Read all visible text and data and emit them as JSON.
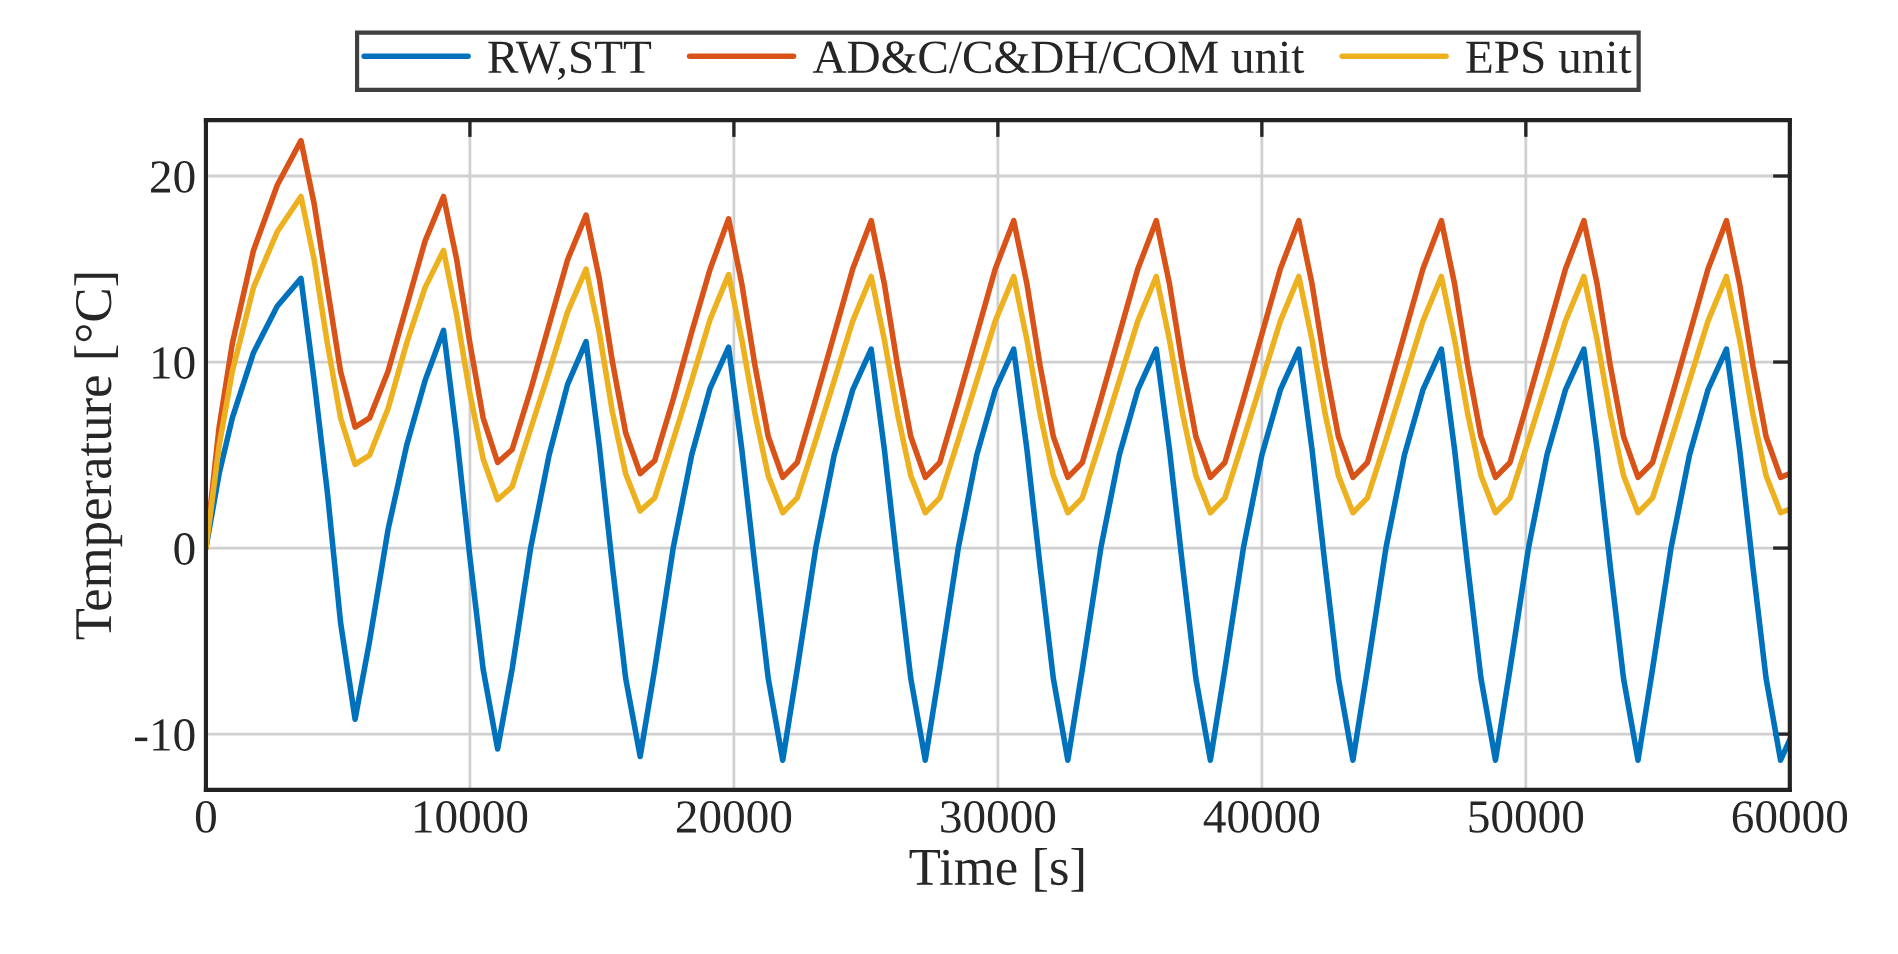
{
  "chart_data": {
    "type": "line",
    "xlabel": "Time [s]",
    "ylabel": "Temperature [°C]",
    "x": [
      0,
      500,
      1000,
      1800,
      2700,
      3600,
      4100,
      4600,
      5100,
      5650,
      6200,
      6900,
      7600,
      8300,
      9000,
      9500,
      10000,
      10500,
      11050,
      11600,
      12300,
      13000,
      13700,
      14400,
      14900,
      15400,
      15900,
      16450,
      17000,
      17700,
      18400,
      19100,
      19800,
      20300,
      20800,
      21300,
      21850,
      22400,
      23100,
      23800,
      24500,
      25200,
      25700,
      26200,
      26700,
      27250,
      27800,
      28500,
      29200,
      29900,
      30600,
      31100,
      31600,
      32100,
      32650,
      33200,
      33900,
      34600,
      35300,
      36000,
      36500,
      37000,
      37500,
      38050,
      38600,
      39300,
      40000,
      40700,
      41400,
      41900,
      42400,
      42900,
      43450,
      44000,
      44700,
      45400,
      46100,
      46800,
      47300,
      47800,
      48300,
      48850,
      49400,
      50100,
      50800,
      51500,
      52200,
      52700,
      53200,
      53700,
      54250,
      54800,
      55500,
      56200,
      56900,
      57600,
      58100,
      58600,
      59100,
      59650,
      60000
    ],
    "series": [
      {
        "name": "RW,STT",
        "color": "#0072bd",
        "values": [
          0,
          4,
          7,
          10.5,
          13,
          14.5,
          9,
          3,
          -4,
          -9.2,
          -5,
          1,
          5.5,
          9,
          11.7,
          6,
          -0.5,
          -6.5,
          -10.8,
          -6.5,
          0,
          5,
          8.8,
          11.1,
          5.5,
          -1,
          -7,
          -11.2,
          -6.5,
          0,
          5,
          8.6,
          10.8,
          5.3,
          -1,
          -7,
          -11.4,
          -6.5,
          0,
          5,
          8.5,
          10.7,
          5.3,
          -1,
          -7,
          -11.4,
          -6.5,
          0,
          5,
          8.5,
          10.7,
          5.3,
          -1,
          -7,
          -11.4,
          -6.5,
          0,
          5,
          8.5,
          10.7,
          5.3,
          -1,
          -7,
          -11.4,
          -6.5,
          0,
          5,
          8.5,
          10.7,
          5.3,
          -1,
          -7,
          -11.4,
          -6.5,
          0,
          5,
          8.5,
          10.7,
          5.3,
          -1,
          -7,
          -11.4,
          -6.5,
          0,
          5,
          8.5,
          10.7,
          5.3,
          -1,
          -7,
          -11.4,
          -6.5,
          0,
          5,
          8.5,
          10.7,
          5.3,
          -1,
          -7,
          -11.4,
          -10.3
        ]
      },
      {
        "name": "AD&C/C&DH/COM unit",
        "color": "#d95319",
        "values": [
          0,
          6.5,
          11,
          16,
          19.5,
          21.9,
          18.5,
          14,
          9.5,
          6.5,
          7,
          9.5,
          13,
          16.5,
          18.9,
          15.5,
          11,
          7,
          4.6,
          5.3,
          8.5,
          12,
          15.5,
          17.9,
          14.5,
          10,
          6.2,
          4,
          4.7,
          8,
          11.6,
          15,
          17.7,
          14.2,
          9.8,
          6,
          3.8,
          4.6,
          8,
          11.5,
          15,
          17.6,
          14.2,
          9.8,
          6,
          3.8,
          4.6,
          8,
          11.5,
          15,
          17.6,
          14.2,
          9.8,
          6,
          3.8,
          4.6,
          8,
          11.5,
          15,
          17.6,
          14.2,
          9.8,
          6,
          3.8,
          4.6,
          8,
          11.5,
          15,
          17.6,
          14.2,
          9.8,
          6,
          3.8,
          4.6,
          8,
          11.5,
          15,
          17.6,
          14.2,
          9.8,
          6,
          3.8,
          4.6,
          8,
          11.5,
          15,
          17.6,
          14.2,
          9.8,
          6,
          3.8,
          4.6,
          8,
          11.5,
          15,
          17.6,
          14.2,
          9.8,
          6,
          3.8,
          4
        ]
      },
      {
        "name": "EPS unit",
        "color": "#edb120",
        "values": [
          0,
          5.5,
          9.5,
          14,
          17,
          18.9,
          15.5,
          11,
          7,
          4.5,
          5,
          7.5,
          11,
          14,
          16,
          12.5,
          8.3,
          4.8,
          2.6,
          3.3,
          6.4,
          9.5,
          12.7,
          15,
          11.6,
          7.3,
          4,
          2,
          2.7,
          5.8,
          9,
          12.3,
          14.7,
          11.2,
          7.2,
          3.9,
          1.9,
          2.7,
          5.8,
          9,
          12.2,
          14.6,
          11.2,
          7.2,
          3.9,
          1.9,
          2.7,
          5.8,
          9,
          12.2,
          14.6,
          11.2,
          7.2,
          3.9,
          1.9,
          2.7,
          5.8,
          9,
          12.2,
          14.6,
          11.2,
          7.2,
          3.9,
          1.9,
          2.7,
          5.8,
          9,
          12.2,
          14.6,
          11.2,
          7.2,
          3.9,
          1.9,
          2.7,
          5.8,
          9,
          12.2,
          14.6,
          11.2,
          7.2,
          3.9,
          1.9,
          2.7,
          5.8,
          9,
          12.2,
          14.6,
          11.2,
          7.2,
          3.9,
          1.9,
          2.7,
          5.8,
          9,
          12.2,
          14.6,
          11.2,
          7.2,
          3.9,
          1.9,
          2.1
        ]
      }
    ],
    "xlim": [
      0,
      60000
    ],
    "xticks": [
      0,
      10000,
      20000,
      30000,
      40000,
      50000,
      60000
    ],
    "ylim": [
      -13,
      23
    ],
    "yticks": [
      -10,
      0,
      10,
      20
    ],
    "grid": true,
    "legend": "top",
    "line_style": "solid",
    "marker": "none"
  }
}
